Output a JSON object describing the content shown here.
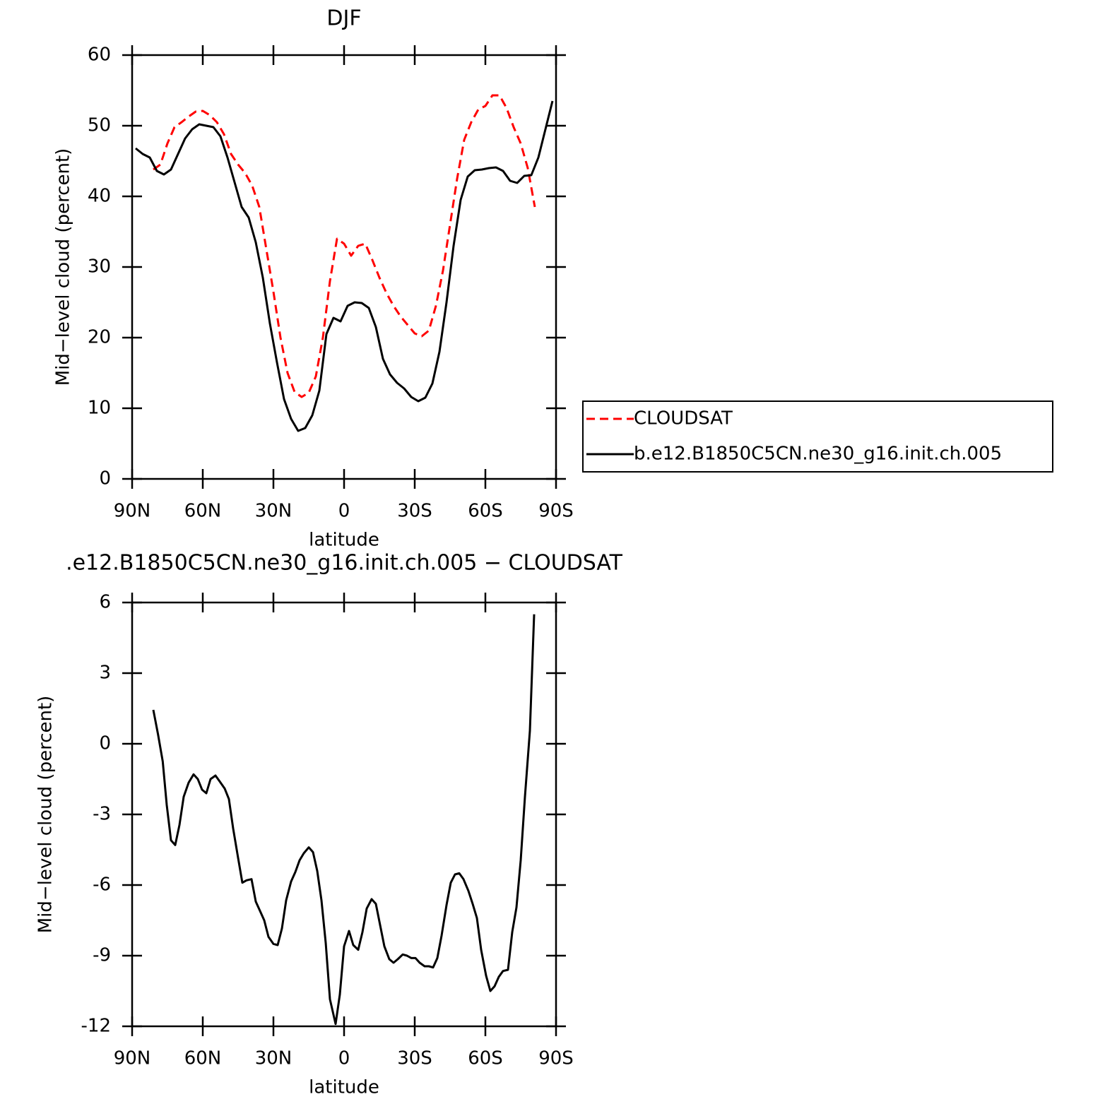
{
  "chart_data": [
    {
      "type": "line",
      "title": "DJF",
      "xlabel": "latitude",
      "ylabel": "Mid−level cloud (percent)",
      "xlim": [
        90,
        -90
      ],
      "xticks": [
        {
          "value": 90,
          "label": "90N"
        },
        {
          "value": 60,
          "label": "60N"
        },
        {
          "value": 30,
          "label": "30N"
        },
        0,
        {
          "value": -30,
          "label": "30S"
        },
        {
          "value": -60,
          "label": "60S"
        },
        {
          "value": -90,
          "label": "90S"
        }
      ],
      "ylim": [
        0,
        60
      ],
      "yticks": [
        0,
        10,
        20,
        30,
        40,
        50,
        60
      ],
      "legend": "right",
      "series": [
        {
          "name": "CLOUDSAT",
          "color": "#ff0000",
          "dash": "dashed",
          "x": [
            81,
            78,
            75,
            72,
            69,
            66,
            63,
            60,
            57,
            54,
            51,
            48,
            45,
            42,
            39,
            36,
            33,
            30,
            27,
            24,
            21,
            18,
            15,
            12,
            9,
            6,
            3,
            0,
            -3,
            -6,
            -9,
            -12,
            -15,
            -18,
            -21,
            -24,
            -27,
            -30,
            -33,
            -36,
            -39,
            -42,
            -45,
            -48,
            -51,
            -54,
            -57,
            -60,
            -63,
            -66,
            -69,
            -72,
            -75,
            -78,
            -81
          ],
          "values": [
            43.8,
            44.5,
            47.5,
            49.8,
            50.5,
            51.3,
            52.0,
            52.1,
            51.5,
            50.5,
            48.8,
            46.0,
            44.5,
            43.3,
            41.5,
            38.5,
            32.5,
            26.5,
            20.0,
            15.0,
            12.3,
            11.6,
            12.2,
            14.5,
            20.0,
            28.0,
            34.0,
            33.3,
            31.6,
            33.0,
            33.3,
            31.0,
            28.5,
            26.3,
            24.5,
            23.0,
            21.8,
            20.6,
            20.2,
            21.0,
            24.5,
            29.5,
            36.0,
            42.5,
            48.0,
            50.5,
            52.3,
            52.8,
            54.3,
            54.3,
            52.5,
            49.8,
            47.5,
            44.0,
            38.5
          ]
        },
        {
          "name": "b.e12.B1850C5CN.ne30_g16.init.ch.005",
          "color": "#000000",
          "dash": "solid",
          "x": [
            88.5,
            85.5,
            82.5,
            79.5,
            76.5,
            73.5,
            70.5,
            67.5,
            64.5,
            61.5,
            58.5,
            55.5,
            52.5,
            49.5,
            46.5,
            43.5,
            40.5,
            37.5,
            34.5,
            31.5,
            28.5,
            25.5,
            22.5,
            19.5,
            16.5,
            13.5,
            10.5,
            7.5,
            4.5,
            1.5,
            -1.5,
            -4.5,
            -7.5,
            -10.5,
            -13.5,
            -16.5,
            -19.5,
            -22.5,
            -25.5,
            -28.5,
            -31.5,
            -34.5,
            -37.5,
            -40.5,
            -43.5,
            -46.5,
            -49.5,
            -52.5,
            -55.5,
            -58.5,
            -61.5,
            -64.5,
            -67.5,
            -70.5,
            -73.5,
            -76.5,
            -79.5,
            -82.5,
            -85.5,
            -88.5
          ],
          "values": [
            46.8,
            46.0,
            45.5,
            43.6,
            43.1,
            43.8,
            46.0,
            48.2,
            49.5,
            50.2,
            50.0,
            49.8,
            48.5,
            45.5,
            42.0,
            38.5,
            37.0,
            33.5,
            28.5,
            22.0,
            16.5,
            11.3,
            8.5,
            6.8,
            7.2,
            9.0,
            12.5,
            20.5,
            22.8,
            22.3,
            24.5,
            25.0,
            24.9,
            24.2,
            21.5,
            17.0,
            14.8,
            13.6,
            12.8,
            11.6,
            11.0,
            11.5,
            13.5,
            18.0,
            25.0,
            33.0,
            39.5,
            42.8,
            43.7,
            43.8,
            44.0,
            44.1,
            43.6,
            42.2,
            41.9,
            42.9,
            43.0,
            45.5,
            49.5,
            53.5
          ]
        }
      ]
    },
    {
      "type": "line",
      "title": ".e12.B1850C5CN.ne30_g16.init.ch.005 − CLOUDSAT",
      "xlabel": "latitude",
      "ylabel": "Mid−level cloud (percent)",
      "xlim": [
        90,
        -90
      ],
      "xticks": [
        {
          "value": 90,
          "label": "90N"
        },
        {
          "value": 60,
          "label": "60N"
        },
        {
          "value": 30,
          "label": "30N"
        },
        0,
        {
          "value": -30,
          "label": "30S"
        },
        {
          "value": -60,
          "label": "60S"
        },
        {
          "value": -90,
          "label": "90S"
        }
      ],
      "ylim": [
        -12,
        6
      ],
      "yticks": [
        -12,
        -9,
        -6,
        -3,
        0,
        3,
        6
      ],
      "series": [
        {
          "color": "#000000",
          "dash": "solid",
          "x": [
            81,
            79,
            77,
            75.3,
            73.5,
            71.7,
            69.9,
            68.1,
            66,
            63.9,
            62.1,
            60.3,
            58.5,
            56.7,
            54.6,
            52.8,
            50.7,
            48.9,
            47.1,
            45,
            43.2,
            41.4,
            39.3,
            37.5,
            35.7,
            33.9,
            32.1,
            30,
            28.2,
            26.4,
            24.6,
            22.5,
            20.7,
            18.9,
            17.1,
            15,
            13.2,
            11.4,
            9.6,
            7.8,
            6,
            3.6,
            1.8,
            0,
            -2.1,
            -3.9,
            -6,
            -7.8,
            -9.6,
            -11.7,
            -13.5,
            -15.3,
            -17.1,
            -19.2,
            -21,
            -22.8,
            -24.9,
            -26.7,
            -28.5,
            -30.3,
            -32.1,
            -34.2,
            -36,
            -37.8,
            -39.6,
            -41.4,
            -43.5,
            -45.3,
            -47.1,
            -48.9,
            -50.7,
            -52.8,
            -54.6,
            -56.4,
            -58.2,
            -60.3,
            -62.1,
            -63.9,
            -65.7,
            -67.5,
            -69.6,
            -71.4,
            -73.2,
            -75,
            -76.8,
            -78.9,
            -80.7
          ],
          "values": [
            1.44,
            0.4,
            -0.75,
            -2.6,
            -4.1,
            -4.3,
            -3.45,
            -2.25,
            -1.65,
            -1.3,
            -1.5,
            -1.95,
            -2.1,
            -1.5,
            -1.35,
            -1.6,
            -1.9,
            -2.35,
            -3.6,
            -4.85,
            -5.9,
            -5.8,
            -5.75,
            -6.7,
            -7.1,
            -7.5,
            -8.2,
            -8.5,
            -8.55,
            -7.85,
            -6.65,
            -5.85,
            -5.45,
            -4.95,
            -4.65,
            -4.4,
            -4.6,
            -5.4,
            -6.65,
            -8.45,
            -10.85,
            -11.9,
            -10.65,
            -8.6,
            -7.95,
            -8.55,
            -8.75,
            -8.0,
            -7.0,
            -6.6,
            -6.8,
            -7.7,
            -8.6,
            -9.15,
            -9.3,
            -9.15,
            -8.95,
            -9.0,
            -9.1,
            -9.1,
            -9.3,
            -9.45,
            -9.45,
            -9.5,
            -9.1,
            -8.15,
            -6.85,
            -5.9,
            -5.55,
            -5.5,
            -5.75,
            -6.25,
            -6.8,
            -7.4,
            -8.75,
            -9.85,
            -10.5,
            -10.3,
            -9.9,
            -9.65,
            -9.6,
            -8.0,
            -6.95,
            -4.95,
            -2.25,
            0.55,
            5.5
          ]
        }
      ]
    }
  ]
}
